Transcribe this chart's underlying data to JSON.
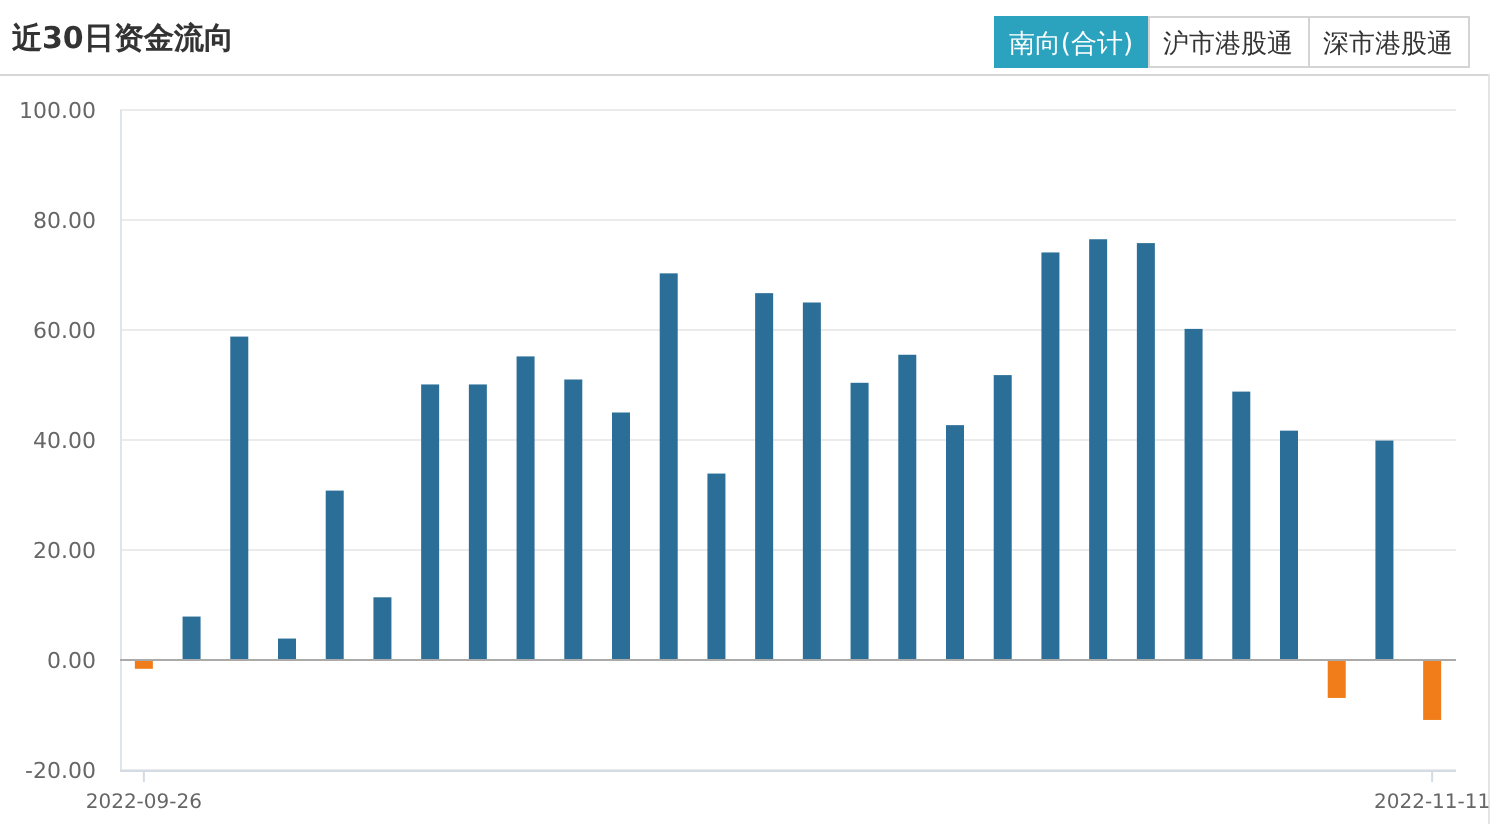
{
  "chart_data": {
    "type": "bar",
    "title": "近30日资金流向",
    "annotations": [
      "南向(合计)",
      "沪市港股通",
      "深市港股通"
    ],
    "categories": [
      "2022-09-26",
      null,
      null,
      null,
      null,
      null,
      null,
      null,
      null,
      null,
      null,
      null,
      null,
      null,
      null,
      null,
      null,
      null,
      null,
      null,
      null,
      null,
      null,
      null,
      null,
      null,
      null,
      "2022-11-11"
    ],
    "values": [
      -1.6,
      7.9,
      58.8,
      3.9,
      30.8,
      11.4,
      50.1,
      50.1,
      55.2,
      51.0,
      45.0,
      70.3,
      33.9,
      66.7,
      65.0,
      50.4,
      55.5,
      42.7,
      51.8,
      74.1,
      76.5,
      75.8,
      60.2,
      48.8,
      41.7,
      -6.9,
      39.9,
      -10.9
    ],
    "colors": [
      "#f07d1a",
      "#2b6f98",
      "#2b6f98",
      "#2b6f98",
      "#2b6f98",
      "#2b6f98",
      "#2b6f98",
      "#2b6f98",
      "#2b6f98",
      "#2b6f98",
      "#2b6f98",
      "#2b6f98",
      "#2b6f98",
      "#2b6f98",
      "#2b6f98",
      "#2b6f98",
      "#2b6f98",
      "#2b6f98",
      "#2b6f98",
      "#2b6f98",
      "#2b6f98",
      "#2b6f98",
      "#2b6f98",
      "#2b6f98",
      "#2b6f98",
      "#f07d1a",
      "#2b6f98",
      "#f07d1a"
    ],
    "ylim": [
      -20,
      100
    ],
    "yticks": [
      {
        "value": -20,
        "label": "-20.00"
      },
      {
        "value": 0,
        "label": "0.00"
      },
      {
        "value": 20,
        "label": "20.00"
      },
      {
        "value": 40,
        "label": "40.00"
      },
      {
        "value": 60,
        "label": "60.00"
      },
      {
        "value": 80,
        "label": "80.00"
      },
      {
        "value": 100,
        "label": "100.00"
      }
    ],
    "grid": "y"
  }
}
